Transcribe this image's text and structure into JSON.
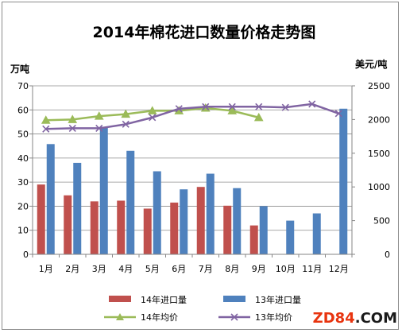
{
  "chart_data": {
    "type": "bar",
    "title": "2014年棉花进口数量价格走势图",
    "ylabel_left": "万吨",
    "ylabel_right": "美元/吨",
    "ylim_left": [
      0,
      70
    ],
    "yticks_left": [
      "0",
      "10",
      "20",
      "30",
      "40",
      "50",
      "60",
      "70"
    ],
    "ylim_right": [
      0,
      2500
    ],
    "yticks_right": [
      "0",
      "500",
      "1000",
      "1500",
      "2000",
      "2500"
    ],
    "grid": true,
    "legend_position": "bottom",
    "categories": [
      "1月",
      "2月",
      "3月",
      "4月",
      "5月",
      "6月",
      "7月",
      "8月",
      "9月",
      "10月",
      "11月",
      "12月"
    ],
    "series": [
      {
        "name": "14年进口量",
        "type": "bar",
        "axis": "left",
        "color": "#c0504d",
        "values": [
          29,
          24.5,
          22,
          22.3,
          19,
          21.5,
          28,
          20.2,
          12,
          null,
          null,
          null
        ]
      },
      {
        "name": "13年进口量",
        "type": "bar",
        "axis": "left",
        "color": "#4f81bd",
        "values": [
          45.8,
          38,
          53,
          43,
          34.5,
          27,
          33.5,
          27.5,
          20,
          14,
          17,
          60.5
        ]
      },
      {
        "name": "14年均价",
        "type": "line",
        "axis": "right",
        "color": "#9bbb59",
        "marker": "triangle",
        "values": [
          1990,
          2000,
          2050,
          2080,
          2130,
          2130,
          2170,
          2130,
          2030,
          null,
          null,
          null
        ]
      },
      {
        "name": "13年均价",
        "type": "line",
        "axis": "right",
        "color": "#8064a2",
        "marker": "x",
        "values": [
          1860,
          1870,
          1870,
          1930,
          2030,
          2160,
          2190,
          2190,
          2190,
          2180,
          2230,
          2090
        ]
      }
    ]
  },
  "watermark": {
    "prefix": "ZD84",
    "dot": ".",
    "suffix": "COM",
    "prefix_color": "#e8340f",
    "rest_color": "#1a1a1a"
  }
}
